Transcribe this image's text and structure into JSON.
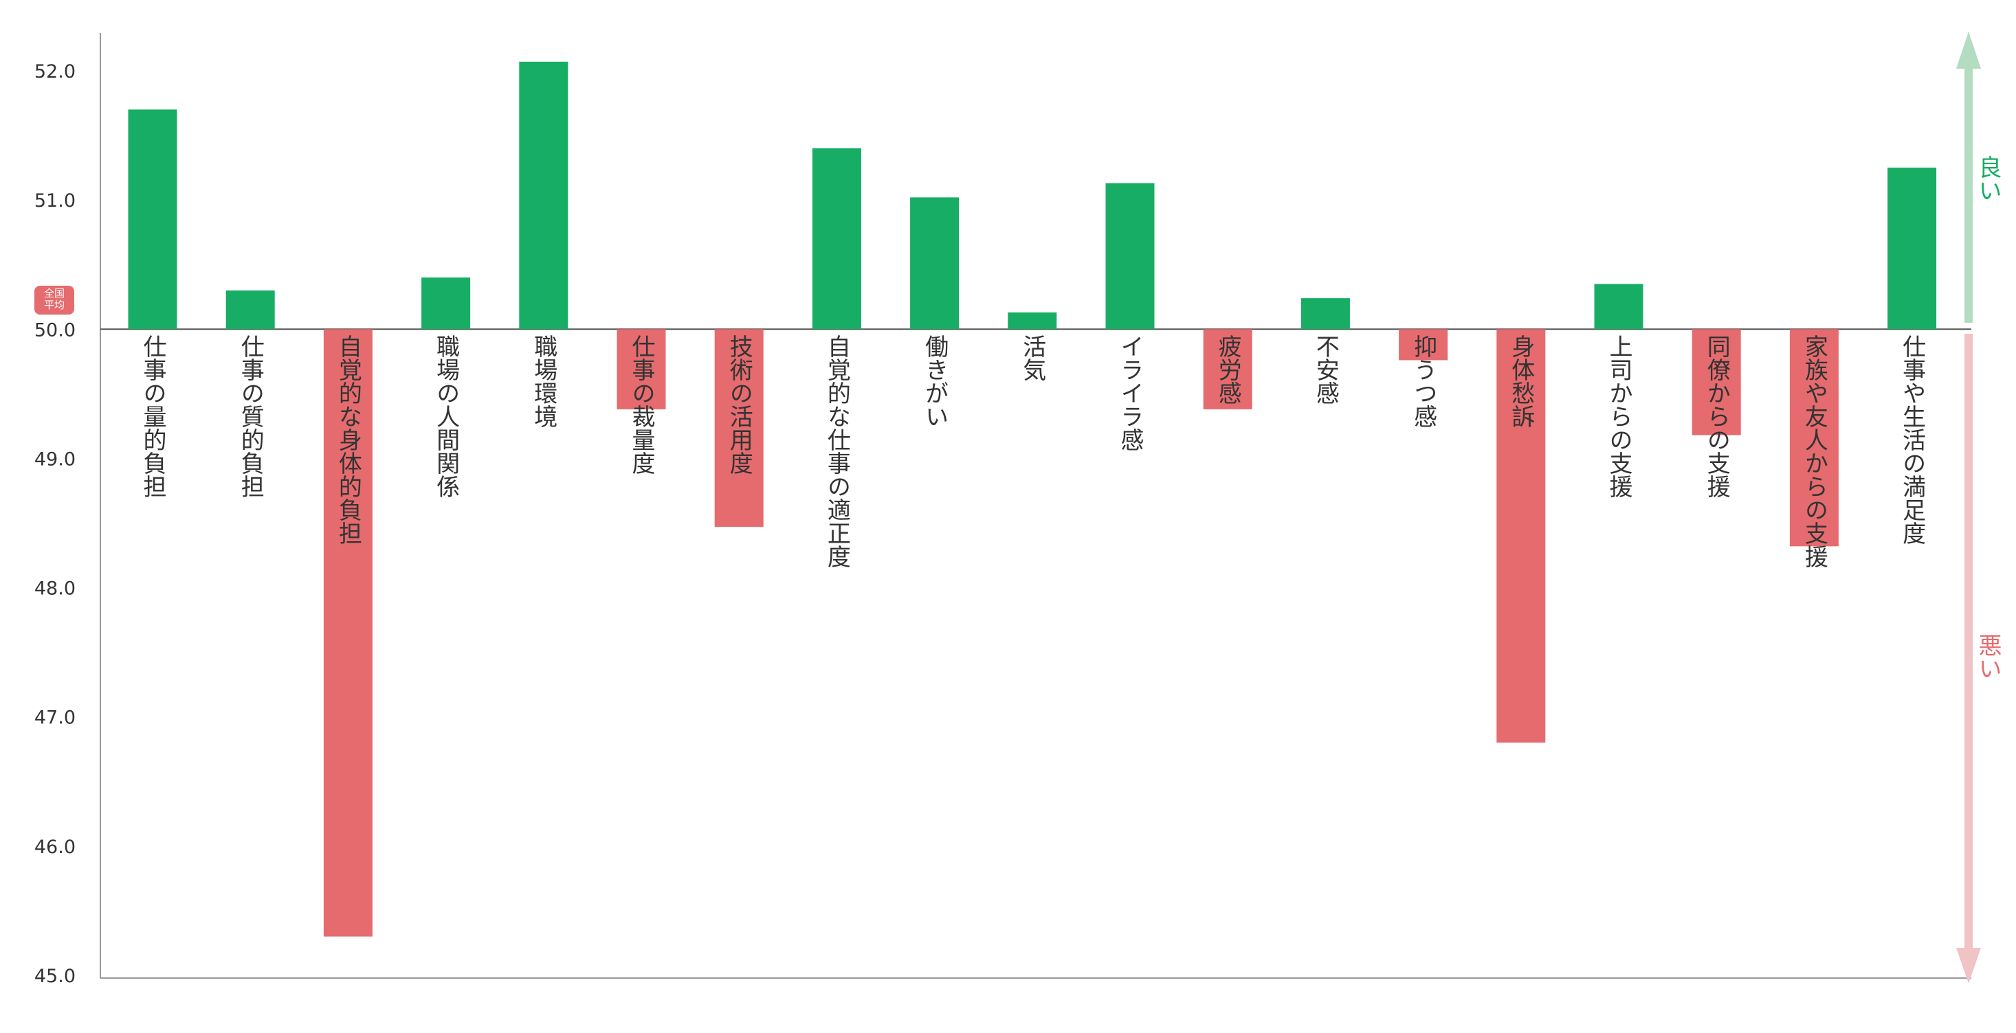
{
  "chart_data": {
    "type": "bar",
    "baseline": 50.0,
    "baseline_badge": [
      "全国",
      "平均"
    ],
    "ylim": [
      45.0,
      52.2
    ],
    "yticks": [
      "45.0",
      "46.0",
      "47.0",
      "48.0",
      "49.0",
      "50.0",
      "51.0",
      "52.0"
    ],
    "categories": [
      "仕事の量的負担",
      "仕事の質的負担",
      "自覚的な身体的負担",
      "職場の人間関係",
      "職場環境",
      "仕事の裁量度",
      "技術の活用度",
      "自覚的な仕事の適正度",
      "働きがい",
      "活気",
      "イライラ感",
      "疲労感",
      "不安感",
      "抑うつ感",
      "身体愁訴",
      "上司からの支援",
      "同僚からの支援",
      "家族や友人からの支援",
      "仕事や生活の満足度"
    ],
    "values": [
      51.7,
      50.3,
      45.3,
      50.4,
      52.07,
      49.38,
      48.47,
      51.4,
      51.02,
      50.13,
      51.13,
      49.38,
      50.24,
      49.76,
      46.8,
      50.35,
      49.18,
      48.32,
      51.25
    ],
    "good_label": "良い",
    "bad_label": "悪い",
    "colors": {
      "good": "#17ad64",
      "bad": "#e56b6f",
      "good_arrow": "#b4dcc0",
      "bad_arrow": "#f0c3c6",
      "axis": "#999999",
      "baseline_text": "#e56b6f"
    }
  }
}
